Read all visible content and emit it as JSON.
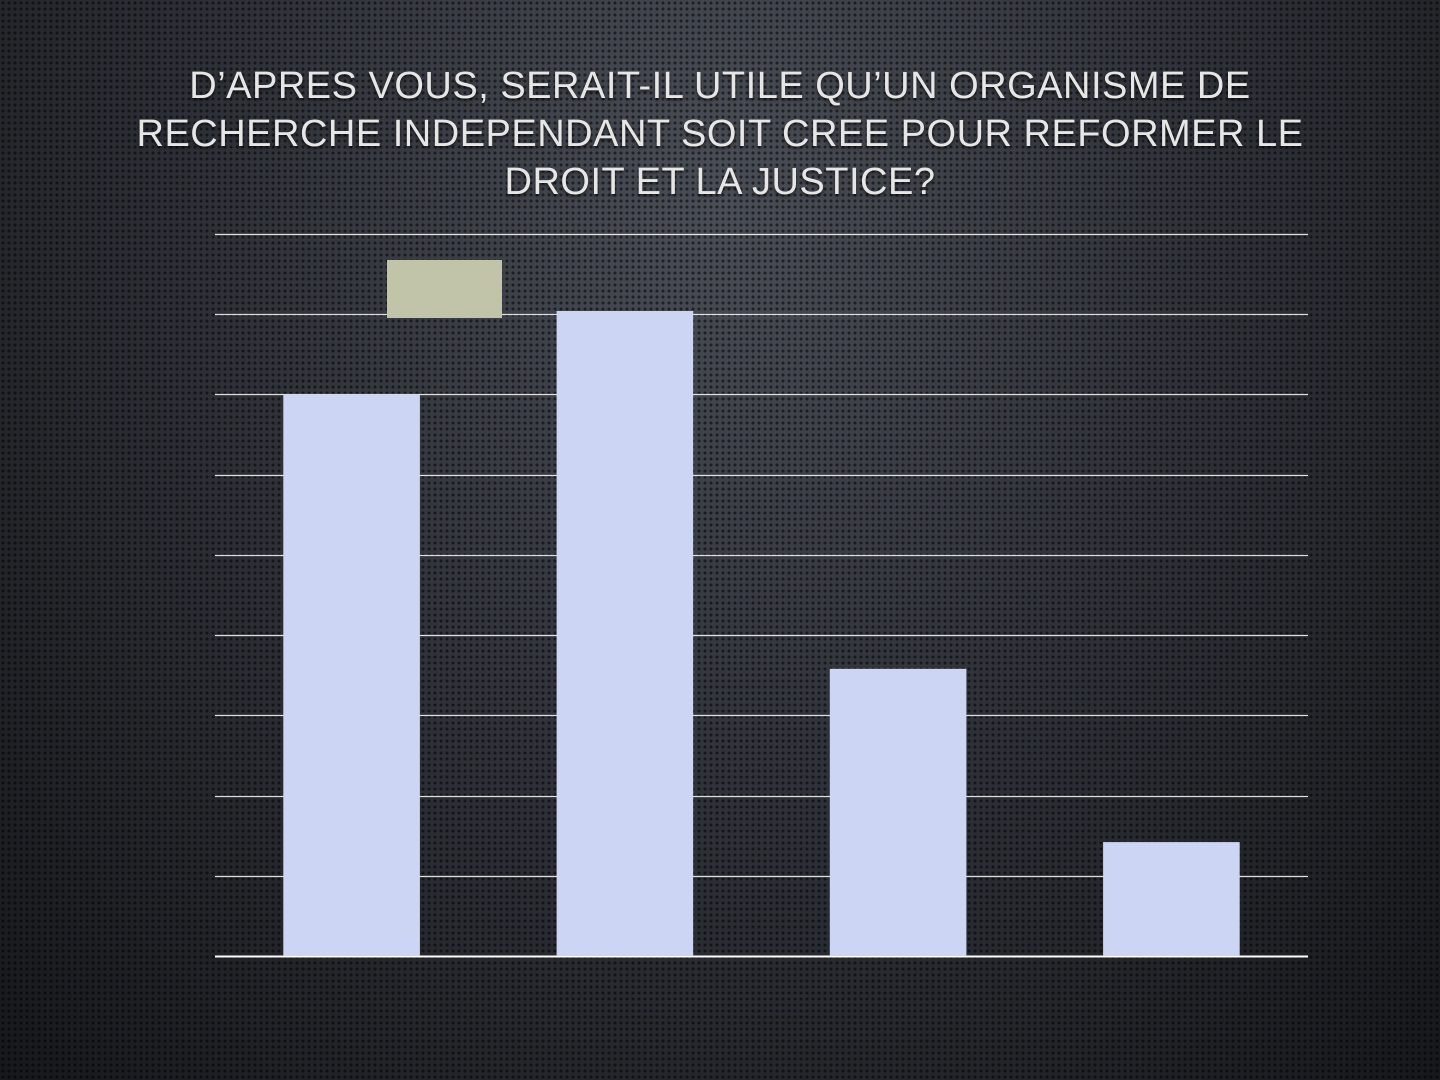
{
  "slide": {
    "title": "D’APRES VOUS, SERAIT-IL UTILE QU’UN ORGANISME DE RECHERCHE INDEPENDANT SOIT CREE POUR REFORMER LE DROIT ET LA JUSTICE?"
  },
  "chart_data": {
    "type": "bar",
    "title": "",
    "xlabel": "",
    "ylabel": "",
    "categories": [
      "",
      "",
      "",
      ""
    ],
    "series": [
      {
        "values": [
          35,
          40.2,
          17.9,
          7.1
        ]
      }
    ],
    "ylim": [
      0,
      45
    ],
    "y_ticks": [
      0,
      5,
      10,
      15,
      20,
      25,
      30,
      35,
      40,
      45
    ],
    "grid": true,
    "legend": "top-left",
    "colors": {
      "bar": "#cdd5f5",
      "legend_swatch": "#c2c4aa",
      "grid": "#ffffff"
    }
  }
}
